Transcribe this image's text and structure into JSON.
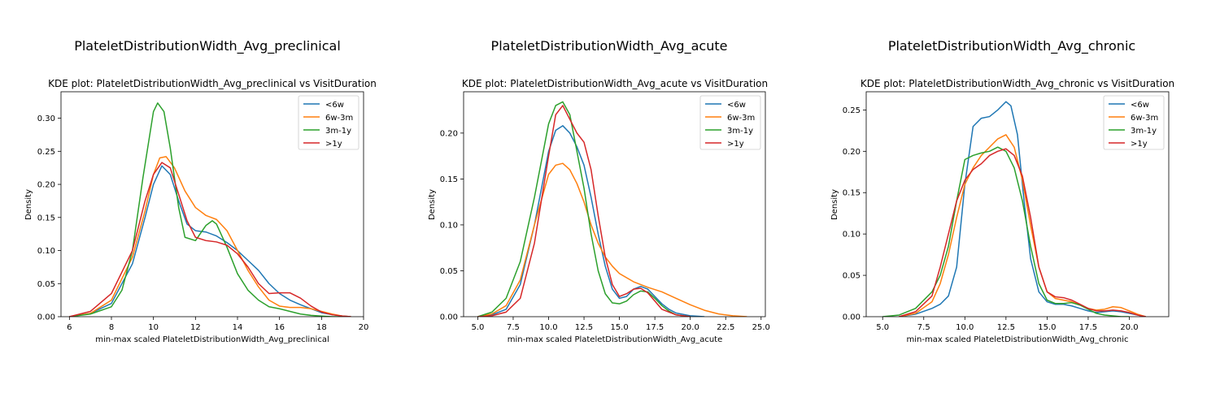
{
  "colors": {
    "<6w": "#1f77b4",
    "6w-3m": "#ff7f0e",
    "3m-1y": "#2ca02c",
    ">1y": "#d62728"
  },
  "chart_data": [
    {
      "type": "line",
      "suptitle": "PlateletDistributionWidth_Avg_preclinical",
      "title": "KDE plot:  PlateletDistributionWidth_Avg_preclinical vs VisitDuration",
      "xlabel": "min-max scaled PlateletDistributionWidth_Avg_preclinical",
      "ylabel": "Density",
      "xlim": [
        5.6,
        20.0
      ],
      "ylim": [
        0,
        0.34
      ],
      "xticks": [
        6,
        8,
        10,
        12,
        14,
        16,
        18,
        20
      ],
      "xtick_labels": [
        "6",
        "8",
        "10",
        "12",
        "14",
        "16",
        "18",
        "20"
      ],
      "yticks": [
        0,
        0.05,
        0.1,
        0.15,
        0.2,
        0.25,
        0.3
      ],
      "ytick_labels": [
        "0.00",
        "0.05",
        "0.10",
        "0.15",
        "0.20",
        "0.25",
        "0.30"
      ],
      "legend": "top-right",
      "grid": false,
      "series": [
        {
          "name": "<6w",
          "x": [
            6.0,
            7.0,
            8.0,
            9.0,
            9.6,
            10.0,
            10.4,
            10.8,
            11.2,
            11.6,
            12.0,
            12.5,
            13.0,
            13.5,
            14.0,
            14.5,
            15.0,
            15.5,
            16.0,
            16.5,
            17.0,
            17.5,
            18.0,
            18.5,
            19.0,
            19.4
          ],
          "y": [
            0.0,
            0.005,
            0.02,
            0.08,
            0.15,
            0.2,
            0.228,
            0.215,
            0.175,
            0.14,
            0.13,
            0.128,
            0.122,
            0.112,
            0.1,
            0.085,
            0.07,
            0.05,
            0.035,
            0.025,
            0.018,
            0.012,
            0.006,
            0.003,
            0.001,
            0.0
          ]
        },
        {
          "name": "6w-3m",
          "x": [
            6.0,
            7.0,
            8.0,
            9.0,
            9.6,
            10.0,
            10.3,
            10.6,
            11.0,
            11.5,
            12.0,
            12.5,
            13.0,
            13.5,
            14.0,
            14.5,
            15.0,
            15.5,
            16.0,
            16.5,
            17.0,
            17.5,
            18.0,
            18.5,
            19.0,
            19.4
          ],
          "y": [
            0.0,
            0.005,
            0.025,
            0.09,
            0.16,
            0.215,
            0.24,
            0.242,
            0.225,
            0.19,
            0.165,
            0.153,
            0.147,
            0.13,
            0.1,
            0.07,
            0.045,
            0.025,
            0.016,
            0.014,
            0.014,
            0.012,
            0.008,
            0.004,
            0.001,
            0.0
          ]
        },
        {
          "name": "3m-1y",
          "x": [
            6.0,
            7.0,
            8.0,
            8.5,
            9.0,
            9.5,
            10.0,
            10.2,
            10.5,
            10.8,
            11.2,
            11.5,
            12.0,
            12.5,
            12.8,
            13.0,
            13.5,
            14.0,
            14.5,
            15.0,
            15.5,
            16.0,
            16.5,
            17.0,
            17.5,
            18.0,
            18.5,
            19.0
          ],
          "y": [
            0.0,
            0.004,
            0.015,
            0.04,
            0.1,
            0.21,
            0.31,
            0.323,
            0.31,
            0.255,
            0.165,
            0.12,
            0.115,
            0.138,
            0.145,
            0.14,
            0.105,
            0.065,
            0.04,
            0.025,
            0.015,
            0.012,
            0.008,
            0.004,
            0.002,
            0.001,
            0.0,
            0.0
          ]
        },
        {
          "name": ">1y",
          "x": [
            6.0,
            7.0,
            8.0,
            9.0,
            9.6,
            10.0,
            10.4,
            10.8,
            11.2,
            11.6,
            12.0,
            12.5,
            13.0,
            13.5,
            14.0,
            14.5,
            15.0,
            15.5,
            16.0,
            16.5,
            17.0,
            17.5,
            18.0,
            18.5,
            19.0,
            19.4
          ],
          "y": [
            0.0,
            0.008,
            0.035,
            0.1,
            0.175,
            0.215,
            0.233,
            0.225,
            0.185,
            0.145,
            0.12,
            0.115,
            0.113,
            0.108,
            0.095,
            0.075,
            0.05,
            0.035,
            0.036,
            0.036,
            0.028,
            0.016,
            0.007,
            0.003,
            0.001,
            0.0
          ]
        }
      ]
    },
    {
      "type": "line",
      "suptitle": "PlateletDistributionWidth_Avg_acute",
      "title": "KDE plot:  PlateletDistributionWidth_Avg_acute vs VisitDuration",
      "xlabel": "min-max scaled PlateletDistributionWidth_Avg_acute",
      "ylabel": "Density",
      "xlim": [
        4.0,
        25.3
      ],
      "ylim": [
        0,
        0.245
      ],
      "xticks": [
        5.0,
        7.5,
        10.0,
        12.5,
        15.0,
        17.5,
        20.0,
        22.5,
        25.0
      ],
      "xtick_labels": [
        "5.0",
        "7.5",
        "10.0",
        "12.5",
        "15.0",
        "17.5",
        "20.0",
        "22.5",
        "25.0"
      ],
      "yticks": [
        0,
        0.05,
        0.1,
        0.15,
        0.2
      ],
      "ytick_labels": [
        "0.00",
        "0.05",
        "0.10",
        "0.15",
        "0.20"
      ],
      "legend": "top-right",
      "grid": false,
      "series": [
        {
          "name": "<6w",
          "x": [
            5.0,
            6.0,
            7.0,
            8.0,
            9.0,
            10.0,
            10.5,
            11.0,
            11.5,
            12.0,
            12.5,
            13.0,
            13.5,
            14.0,
            14.5,
            15.0,
            15.5,
            16.0,
            16.5,
            17.0,
            17.5,
            18.0,
            18.5,
            19.0,
            20.0,
            21.0
          ],
          "y": [
            0.0,
            0.002,
            0.008,
            0.035,
            0.1,
            0.18,
            0.203,
            0.208,
            0.2,
            0.185,
            0.165,
            0.13,
            0.09,
            0.055,
            0.03,
            0.02,
            0.022,
            0.03,
            0.033,
            0.03,
            0.022,
            0.014,
            0.008,
            0.004,
            0.001,
            0.0
          ]
        },
        {
          "name": "6w-3m",
          "x": [
            5.0,
            6.0,
            7.0,
            8.0,
            9.0,
            10.0,
            10.5,
            11.0,
            11.5,
            12.0,
            12.5,
            13.0,
            13.5,
            14.0,
            14.5,
            15.0,
            16.0,
            17.0,
            18.0,
            19.0,
            20.0,
            21.0,
            22.0,
            23.0,
            24.0
          ],
          "y": [
            0.0,
            0.003,
            0.012,
            0.04,
            0.1,
            0.155,
            0.165,
            0.167,
            0.16,
            0.145,
            0.125,
            0.1,
            0.08,
            0.065,
            0.055,
            0.047,
            0.038,
            0.032,
            0.027,
            0.02,
            0.013,
            0.007,
            0.003,
            0.001,
            0.0
          ]
        },
        {
          "name": "3m-1y",
          "x": [
            5.0,
            6.0,
            7.0,
            8.0,
            9.0,
            10.0,
            10.5,
            11.0,
            11.5,
            12.0,
            12.5,
            13.0,
            13.5,
            14.0,
            14.5,
            15.0,
            15.5,
            16.0,
            16.5,
            17.0,
            17.5,
            18.0,
            18.5,
            19.0,
            20.0
          ],
          "y": [
            0.0,
            0.005,
            0.02,
            0.06,
            0.13,
            0.21,
            0.23,
            0.234,
            0.22,
            0.18,
            0.14,
            0.09,
            0.05,
            0.025,
            0.015,
            0.014,
            0.017,
            0.024,
            0.028,
            0.027,
            0.02,
            0.012,
            0.006,
            0.002,
            0.0
          ]
        },
        {
          "name": ">1y",
          "x": [
            5.0,
            6.0,
            7.0,
            8.0,
            9.0,
            10.0,
            10.5,
            11.0,
            11.5,
            12.0,
            12.5,
            13.0,
            13.5,
            14.0,
            14.5,
            15.0,
            15.5,
            16.0,
            16.5,
            17.0,
            17.5,
            18.0,
            19.0,
            20.0
          ],
          "y": [
            0.0,
            0.001,
            0.005,
            0.02,
            0.08,
            0.175,
            0.22,
            0.23,
            0.215,
            0.2,
            0.19,
            0.16,
            0.11,
            0.065,
            0.035,
            0.022,
            0.025,
            0.03,
            0.031,
            0.026,
            0.017,
            0.008,
            0.002,
            0.0
          ]
        }
      ]
    },
    {
      "type": "line",
      "suptitle": "PlateletDistributionWidth_Avg_chronic",
      "title": "KDE plot:  PlateletDistributionWidth_Avg_chronic vs VisitDuration",
      "xlabel": "min-max scaled PlateletDistributionWidth_Avg_chronic",
      "ylabel": "Density",
      "xlim": [
        4.0,
        22.4
      ],
      "ylim": [
        0,
        0.272
      ],
      "xticks": [
        5.0,
        7.5,
        10.0,
        12.5,
        15.0,
        17.5,
        20.0
      ],
      "xtick_labels": [
        "5.0",
        "7.5",
        "10.0",
        "12.5",
        "15.0",
        "17.5",
        "20.0"
      ],
      "yticks": [
        0,
        0.05,
        0.1,
        0.15,
        0.2,
        0.25
      ],
      "ytick_labels": [
        "0.00",
        "0.05",
        "0.10",
        "0.15",
        "0.20",
        "0.25"
      ],
      "legend": "top-right",
      "grid": false,
      "series": [
        {
          "name": "<6w",
          "x": [
            6.0,
            7.0,
            8.0,
            8.5,
            9.0,
            9.5,
            10.0,
            10.5,
            11.0,
            11.5,
            12.0,
            12.5,
            12.8,
            13.2,
            13.6,
            14.0,
            14.5,
            15.0,
            15.5,
            16.0,
            16.5,
            17.0,
            17.5,
            18.0,
            18.5,
            19.0,
            19.5,
            20.0,
            20.5,
            21.0
          ],
          "y": [
            0.0,
            0.003,
            0.01,
            0.015,
            0.025,
            0.06,
            0.16,
            0.23,
            0.24,
            0.242,
            0.25,
            0.26,
            0.255,
            0.22,
            0.14,
            0.07,
            0.03,
            0.018,
            0.015,
            0.015,
            0.013,
            0.01,
            0.007,
            0.005,
            0.006,
            0.007,
            0.006,
            0.004,
            0.002,
            0.0
          ]
        },
        {
          "name": "6w-3m",
          "x": [
            6.0,
            7.0,
            8.0,
            8.5,
            9.0,
            9.5,
            10.0,
            10.5,
            11.0,
            11.5,
            12.0,
            12.5,
            13.0,
            13.5,
            14.0,
            14.5,
            15.0,
            15.5,
            16.0,
            16.5,
            17.0,
            17.5,
            18.0,
            18.5,
            19.0,
            19.5,
            20.0,
            20.5,
            21.0
          ],
          "y": [
            0.0,
            0.004,
            0.018,
            0.04,
            0.075,
            0.12,
            0.16,
            0.18,
            0.195,
            0.205,
            0.215,
            0.22,
            0.205,
            0.165,
            0.11,
            0.06,
            0.03,
            0.022,
            0.02,
            0.018,
            0.014,
            0.01,
            0.008,
            0.009,
            0.012,
            0.011,
            0.007,
            0.003,
            0.0
          ]
        },
        {
          "name": "3m-1y",
          "x": [
            5.0,
            6.0,
            7.0,
            8.0,
            8.5,
            9.0,
            9.5,
            10.0,
            10.5,
            11.0,
            11.5,
            12.0,
            12.5,
            13.0,
            13.5,
            14.0,
            14.5,
            15.0,
            15.5,
            16.0,
            16.5,
            17.0,
            17.5,
            18.0,
            18.5,
            19.0,
            19.5,
            20.0
          ],
          "y": [
            0.0,
            0.002,
            0.01,
            0.03,
            0.05,
            0.085,
            0.14,
            0.19,
            0.195,
            0.198,
            0.2,
            0.205,
            0.2,
            0.18,
            0.14,
            0.085,
            0.04,
            0.02,
            0.016,
            0.016,
            0.017,
            0.014,
            0.009,
            0.004,
            0.002,
            0.001,
            0.0,
            0.0
          ]
        },
        {
          "name": ">1y",
          "x": [
            6.0,
            7.0,
            8.0,
            8.5,
            9.0,
            9.5,
            10.0,
            10.5,
            11.0,
            11.5,
            12.0,
            12.5,
            13.0,
            13.5,
            14.0,
            14.5,
            15.0,
            15.5,
            16.0,
            16.5,
            17.0,
            17.5,
            18.0,
            18.5,
            19.0,
            19.5,
            20.0,
            20.5,
            21.0
          ],
          "y": [
            0.0,
            0.006,
            0.025,
            0.06,
            0.1,
            0.14,
            0.165,
            0.178,
            0.185,
            0.195,
            0.2,
            0.203,
            0.195,
            0.17,
            0.12,
            0.06,
            0.03,
            0.024,
            0.023,
            0.02,
            0.015,
            0.01,
            0.007,
            0.007,
            0.008,
            0.007,
            0.005,
            0.002,
            0.0
          ]
        }
      ]
    }
  ]
}
